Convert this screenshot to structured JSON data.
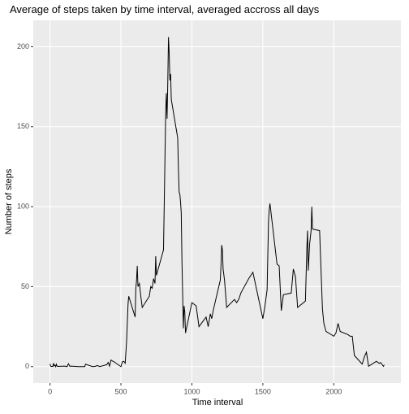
{
  "chart_data": {
    "type": "line",
    "title": "Average of steps taken by time interval, averaged accross all days",
    "x_label": "Time interval",
    "y_label": "Number of steps",
    "x": [
      0,
      5,
      10,
      15,
      20,
      25,
      30,
      35,
      40,
      45,
      50,
      55,
      100,
      110,
      120,
      130,
      140,
      150,
      200,
      230,
      245,
      250,
      300,
      320,
      330,
      340,
      350,
      400,
      410,
      420,
      430,
      440,
      450,
      500,
      510,
      520,
      530,
      540,
      550,
      555,
      600,
      605,
      610,
      615,
      620,
      630,
      640,
      650,
      700,
      710,
      720,
      730,
      740,
      745,
      750,
      800,
      810,
      815,
      820,
      825,
      830,
      835,
      840,
      845,
      850,
      855,
      900,
      905,
      910,
      915,
      920,
      925,
      930,
      935,
      940,
      945,
      950,
      955,
      1000,
      1030,
      1050,
      1100,
      1115,
      1130,
      1140,
      1150,
      1200,
      1205,
      1210,
      1215,
      1220,
      1230,
      1245,
      1300,
      1315,
      1330,
      1345,
      1400,
      1430,
      1500,
      1515,
      1530,
      1540,
      1545,
      1550,
      1600,
      1615,
      1630,
      1645,
      1700,
      1715,
      1730,
      1745,
      1800,
      1810,
      1815,
      1820,
      1830,
      1840,
      1845,
      1850,
      1900,
      1920,
      1930,
      1945,
      2000,
      2015,
      2030,
      2045,
      2100,
      2115,
      2130,
      2145,
      2200,
      2215,
      2230,
      2245,
      2300,
      2320,
      2330,
      2345,
      2350,
      2355
    ],
    "series": [
      {
        "name": "steps",
        "color": "#000000",
        "values": [
          1.7,
          0.3,
          0.1,
          0.2,
          0.1,
          2.1,
          0.5,
          0.9,
          0,
          1.5,
          0.3,
          0.1,
          0.3,
          0.2,
          0,
          1.8,
          0.2,
          0.3,
          0,
          0,
          0,
          1.5,
          0,
          0.2,
          0.6,
          0.5,
          0,
          1.2,
          2.6,
          0.3,
          4.1,
          3.5,
          3.1,
          0,
          3,
          3.3,
          2.1,
          16,
          39,
          44,
          31,
          49,
          53.8,
          63,
          50,
          52,
          44,
          37,
          44,
          50,
          49,
          55,
          52,
          69,
          57,
          73,
          129,
          157,
          171,
          155,
          177,
          206,
          196,
          179,
          183,
          167,
          143,
          124,
          109,
          108,
          103,
          96,
          66,
          45,
          24,
          38,
          34,
          21,
          40,
          38,
          25,
          31,
          25,
          33,
          30,
          35,
          54,
          63,
          76,
          73,
          61,
          54,
          37,
          42,
          40,
          42,
          46,
          55,
          59,
          30,
          38,
          48,
          91,
          98,
          102,
          64,
          63,
          35,
          45,
          46,
          61,
          56,
          37,
          41,
          74,
          85,
          60,
          77,
          85,
          100,
          86,
          85,
          36,
          27,
          22,
          19,
          21,
          27,
          22,
          20,
          19,
          19,
          7,
          1.6,
          6,
          9,
          0.2,
          3.3,
          2,
          2.6,
          0.7,
          0.2,
          1.1
        ]
      }
    ],
    "xlim": [
      -117.75,
      2472.75
    ],
    "xticks": [
      0,
      500,
      1000,
      1500,
      2000
    ],
    "ylim": [
      -10.3,
      216.5
    ],
    "yticks": [
      0,
      50,
      100,
      150,
      200
    ],
    "grid": true
  }
}
